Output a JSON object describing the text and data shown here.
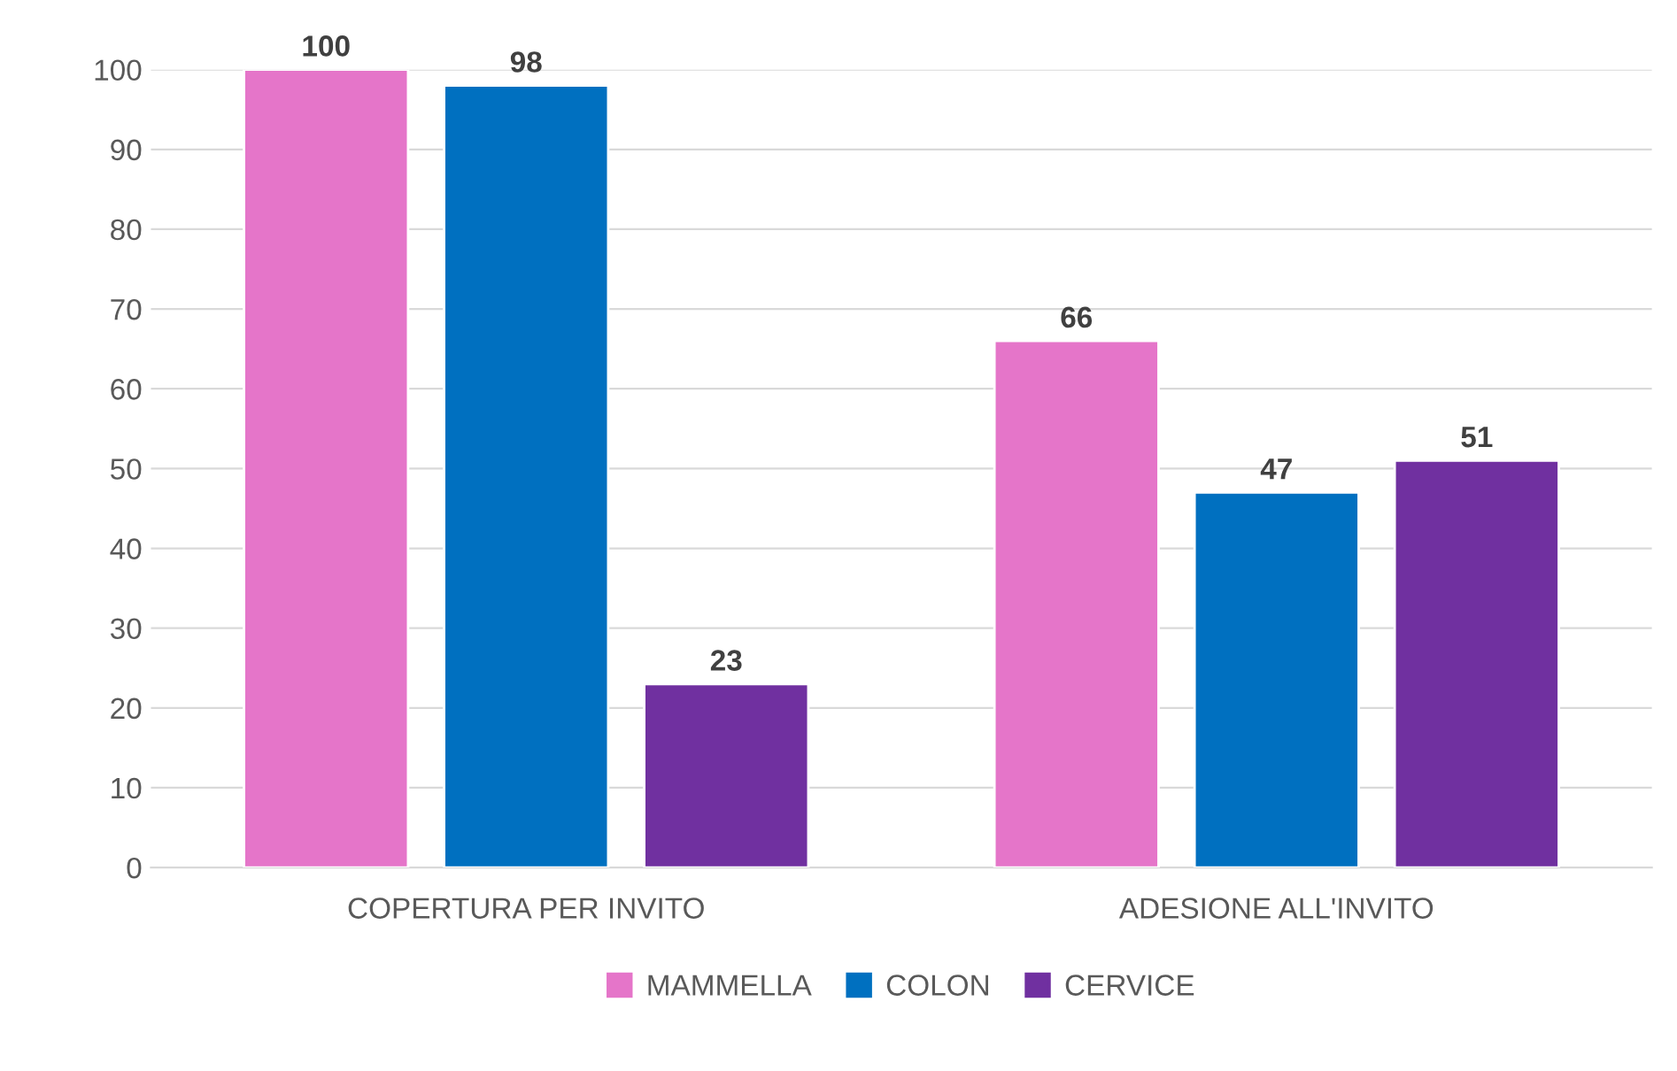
{
  "chart_data": {
    "type": "bar",
    "categories": [
      "COPERTURA PER INVITO",
      "ADESIONE ALL'INVITO"
    ],
    "series": [
      {
        "name": "MAMMELLA",
        "color": "#e575c9",
        "values": [
          100,
          66
        ]
      },
      {
        "name": "COLON",
        "color": "#0070c0",
        "values": [
          98,
          47
        ]
      },
      {
        "name": "CERVICE",
        "color": "#7030a0",
        "values": [
          23,
          51
        ]
      }
    ],
    "ylim": [
      0,
      100
    ],
    "yticks": [
      0,
      10,
      20,
      30,
      40,
      50,
      60,
      70,
      80,
      90,
      100
    ],
    "grid": "y",
    "legend": "bottom",
    "data_labels": true
  }
}
